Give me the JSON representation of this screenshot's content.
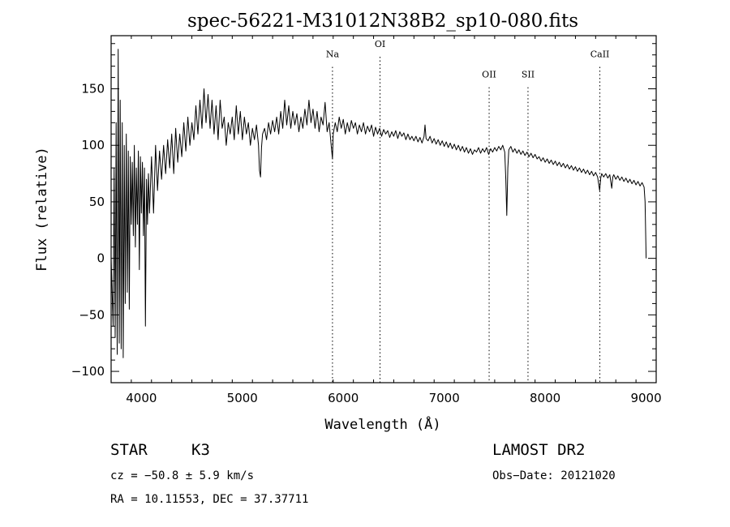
{
  "chart_data": {
    "type": "line",
    "title": "spec-56221-M31012N38B2_sp10-080.fits",
    "xlabel": "Wavelength (Å)",
    "ylabel": "Flux (relative)",
    "xlim": [
      3700,
      9100
    ],
    "ylim": [
      -110,
      197
    ],
    "xticks": [
      4000,
      5000,
      6000,
      7000,
      8000,
      9000
    ],
    "yticks": [
      -100,
      -50,
      0,
      50,
      100,
      150
    ],
    "ytick_labels": [
      "−100",
      "−50",
      "0",
      "50",
      "100",
      "150"
    ],
    "grid": false,
    "line_markers": [
      {
        "label": "Na",
        "x": 5893,
        "label_y": 178
      },
      {
        "label": "OI",
        "x": 6364,
        "label_y": 187
      },
      {
        "label": "OII",
        "x": 7445,
        "label_y": 160
      },
      {
        "label": "SII",
        "x": 7830,
        "label_y": 160
      },
      {
        "label": "CaII",
        "x": 8542,
        "label_y": 178
      }
    ],
    "series": [
      {
        "values": [
          [
            3700,
            0
          ],
          [
            3720,
            -60
          ],
          [
            3730,
            80
          ],
          [
            3740,
            -70
          ],
          [
            3750,
            120
          ],
          [
            3760,
            -85
          ],
          [
            3770,
            185
          ],
          [
            3780,
            -75
          ],
          [
            3790,
            140
          ],
          [
            3800,
            -80
          ],
          [
            3810,
            120
          ],
          [
            3820,
            -88
          ],
          [
            3830,
            100
          ],
          [
            3840,
            -40
          ],
          [
            3850,
            110
          ],
          [
            3860,
            -30
          ],
          [
            3870,
            95
          ],
          [
            3880,
            -45
          ],
          [
            3890,
            90
          ],
          [
            3900,
            30
          ],
          [
            3910,
            85
          ],
          [
            3920,
            20
          ],
          [
            3930,
            100
          ],
          [
            3940,
            10
          ],
          [
            3950,
            80
          ],
          [
            3960,
            30
          ],
          [
            3970,
            95
          ],
          [
            3980,
            -10
          ],
          [
            3990,
            90
          ],
          [
            4000,
            40
          ],
          [
            4010,
            85
          ],
          [
            4020,
            20
          ],
          [
            4030,
            80
          ],
          [
            4040,
            -60
          ],
          [
            4050,
            70
          ],
          [
            4060,
            30
          ],
          [
            4070,
            75
          ],
          [
            4080,
            40
          ],
          [
            4100,
            90
          ],
          [
            4120,
            40
          ],
          [
            4140,
            100
          ],
          [
            4160,
            60
          ],
          [
            4180,
            95
          ],
          [
            4200,
            70
          ],
          [
            4220,
            100
          ],
          [
            4240,
            75
          ],
          [
            4260,
            105
          ],
          [
            4280,
            80
          ],
          [
            4300,
            110
          ],
          [
            4320,
            75
          ],
          [
            4340,
            115
          ],
          [
            4360,
            85
          ],
          [
            4380,
            110
          ],
          [
            4400,
            90
          ],
          [
            4420,
            120
          ],
          [
            4440,
            95
          ],
          [
            4460,
            125
          ],
          [
            4480,
            100
          ],
          [
            4500,
            120
          ],
          [
            4520,
            105
          ],
          [
            4540,
            135
          ],
          [
            4560,
            110
          ],
          [
            4580,
            140
          ],
          [
            4600,
            115
          ],
          [
            4620,
            150
          ],
          [
            4640,
            120
          ],
          [
            4660,
            145
          ],
          [
            4680,
            115
          ],
          [
            4700,
            140
          ],
          [
            4720,
            110
          ],
          [
            4740,
            135
          ],
          [
            4760,
            105
          ],
          [
            4780,
            140
          ],
          [
            4800,
            115
          ],
          [
            4820,
            125
          ],
          [
            4840,
            100
          ],
          [
            4860,
            120
          ],
          [
            4880,
            110
          ],
          [
            4900,
            125
          ],
          [
            4920,
            105
          ],
          [
            4940,
            135
          ],
          [
            4960,
            110
          ],
          [
            4980,
            130
          ],
          [
            5000,
            105
          ],
          [
            5020,
            125
          ],
          [
            5040,
            110
          ],
          [
            5060,
            120
          ],
          [
            5080,
            100
          ],
          [
            5100,
            115
          ],
          [
            5120,
            105
          ],
          [
            5140,
            118
          ],
          [
            5160,
            100
          ],
          [
            5170,
            78
          ],
          [
            5180,
            72
          ],
          [
            5190,
            98
          ],
          [
            5200,
            110
          ],
          [
            5220,
            115
          ],
          [
            5240,
            105
          ],
          [
            5260,
            120
          ],
          [
            5280,
            110
          ],
          [
            5300,
            122
          ],
          [
            5320,
            112
          ],
          [
            5340,
            125
          ],
          [
            5360,
            110
          ],
          [
            5380,
            130
          ],
          [
            5400,
            115
          ],
          [
            5420,
            140
          ],
          [
            5440,
            118
          ],
          [
            5460,
            135
          ],
          [
            5480,
            115
          ],
          [
            5500,
            130
          ],
          [
            5520,
            118
          ],
          [
            5540,
            128
          ],
          [
            5560,
            112
          ],
          [
            5580,
            125
          ],
          [
            5600,
            115
          ],
          [
            5620,
            132
          ],
          [
            5640,
            118
          ],
          [
            5660,
            140
          ],
          [
            5680,
            120
          ],
          [
            5700,
            132
          ],
          [
            5720,
            115
          ],
          [
            5740,
            130
          ],
          [
            5760,
            112
          ],
          [
            5780,
            125
          ],
          [
            5800,
            118
          ],
          [
            5820,
            138
          ],
          [
            5840,
            112
          ],
          [
            5860,
            120
          ],
          [
            5880,
            100
          ],
          [
            5893,
            88
          ],
          [
            5900,
            110
          ],
          [
            5920,
            120
          ],
          [
            5940,
            112
          ],
          [
            5960,
            125
          ],
          [
            5980,
            115
          ],
          [
            6000,
            123
          ],
          [
            6020,
            110
          ],
          [
            6040,
            120
          ],
          [
            6060,
            112
          ],
          [
            6080,
            122
          ],
          [
            6100,
            115
          ],
          [
            6120,
            120
          ],
          [
            6140,
            110
          ],
          [
            6160,
            118
          ],
          [
            6180,
            112
          ],
          [
            6200,
            120
          ],
          [
            6220,
            110
          ],
          [
            6240,
            117
          ],
          [
            6260,
            112
          ],
          [
            6280,
            118
          ],
          [
            6300,
            108
          ],
          [
            6320,
            116
          ],
          [
            6340,
            110
          ],
          [
            6360,
            115
          ],
          [
            6380,
            108
          ],
          [
            6400,
            114
          ],
          [
            6420,
            110
          ],
          [
            6440,
            113
          ],
          [
            6460,
            107
          ],
          [
            6480,
            112
          ],
          [
            6500,
            108
          ],
          [
            6520,
            113
          ],
          [
            6540,
            106
          ],
          [
            6560,
            112
          ],
          [
            6580,
            108
          ],
          [
            6600,
            111
          ],
          [
            6620,
            105
          ],
          [
            6640,
            110
          ],
          [
            6660,
            105
          ],
          [
            6680,
            108
          ],
          [
            6700,
            104
          ],
          [
            6720,
            108
          ],
          [
            6740,
            103
          ],
          [
            6760,
            107
          ],
          [
            6780,
            102
          ],
          [
            6800,
            108
          ],
          [
            6810,
            118
          ],
          [
            6820,
            106
          ],
          [
            6840,
            104
          ],
          [
            6860,
            108
          ],
          [
            6880,
            102
          ],
          [
            6900,
            106
          ],
          [
            6920,
            101
          ],
          [
            6940,
            105
          ],
          [
            6960,
            100
          ],
          [
            6980,
            104
          ],
          [
            7000,
            99
          ],
          [
            7020,
            103
          ],
          [
            7040,
            98
          ],
          [
            7060,
            102
          ],
          [
            7080,
            97
          ],
          [
            7100,
            101
          ],
          [
            7120,
            96
          ],
          [
            7140,
            100
          ],
          [
            7160,
            95
          ],
          [
            7180,
            99
          ],
          [
            7200,
            94
          ],
          [
            7220,
            98
          ],
          [
            7240,
            93
          ],
          [
            7260,
            97
          ],
          [
            7280,
            92
          ],
          [
            7300,
            96
          ],
          [
            7320,
            94
          ],
          [
            7340,
            98
          ],
          [
            7360,
            93
          ],
          [
            7380,
            97
          ],
          [
            7400,
            94
          ],
          [
            7420,
            98
          ],
          [
            7440,
            92
          ],
          [
            7460,
            97
          ],
          [
            7480,
            94
          ],
          [
            7500,
            98
          ],
          [
            7520,
            95
          ],
          [
            7540,
            99
          ],
          [
            7560,
            96
          ],
          [
            7580,
            100
          ],
          [
            7600,
            94
          ],
          [
            7610,
            70
          ],
          [
            7620,
            38
          ],
          [
            7630,
            80
          ],
          [
            7640,
            96
          ],
          [
            7660,
            99
          ],
          [
            7680,
            94
          ],
          [
            7700,
            97
          ],
          [
            7720,
            93
          ],
          [
            7740,
            96
          ],
          [
            7760,
            92
          ],
          [
            7780,
            95
          ],
          [
            7800,
            91
          ],
          [
            7820,
            94
          ],
          [
            7840,
            90
          ],
          [
            7860,
            93
          ],
          [
            7880,
            89
          ],
          [
            7900,
            92
          ],
          [
            7920,
            88
          ],
          [
            7940,
            90
          ],
          [
            7960,
            86
          ],
          [
            7980,
            89
          ],
          [
            8000,
            85
          ],
          [
            8020,
            88
          ],
          [
            8040,
            84
          ],
          [
            8060,
            87
          ],
          [
            8080,
            83
          ],
          [
            8100,
            86
          ],
          [
            8120,
            82
          ],
          [
            8140,
            85
          ],
          [
            8160,
            81
          ],
          [
            8180,
            84
          ],
          [
            8200,
            80
          ],
          [
            8220,
            83
          ],
          [
            8240,
            79
          ],
          [
            8260,
            82
          ],
          [
            8280,
            78
          ],
          [
            8300,
            81
          ],
          [
            8320,
            77
          ],
          [
            8340,
            80
          ],
          [
            8360,
            76
          ],
          [
            8380,
            79
          ],
          [
            8400,
            75
          ],
          [
            8420,
            78
          ],
          [
            8440,
            74
          ],
          [
            8460,
            77
          ],
          [
            8480,
            73
          ],
          [
            8500,
            76
          ],
          [
            8520,
            72
          ],
          [
            8540,
            60
          ],
          [
            8550,
            71
          ],
          [
            8560,
            75
          ],
          [
            8580,
            72
          ],
          [
            8600,
            75
          ],
          [
            8620,
            71
          ],
          [
            8640,
            74
          ],
          [
            8660,
            62
          ],
          [
            8670,
            72
          ],
          [
            8680,
            74
          ],
          [
            8700,
            70
          ],
          [
            8720,
            73
          ],
          [
            8740,
            69
          ],
          [
            8760,
            72
          ],
          [
            8780,
            68
          ],
          [
            8800,
            71
          ],
          [
            8820,
            67
          ],
          [
            8840,
            70
          ],
          [
            8860,
            66
          ],
          [
            8880,
            69
          ],
          [
            8900,
            65
          ],
          [
            8920,
            68
          ],
          [
            8940,
            64
          ],
          [
            8960,
            67
          ],
          [
            8980,
            63
          ],
          [
            8990,
            50
          ],
          [
            9000,
            0
          ]
        ]
      }
    ]
  },
  "info": {
    "object_class": "STAR",
    "subclass": "K3",
    "survey": "LAMOST DR2",
    "cz": "cz = −50.8 ± 5.9 km/s",
    "obs_date": "Obs−Date: 20121020",
    "radec": "RA =  10.11553, DEC =  37.37711"
  }
}
